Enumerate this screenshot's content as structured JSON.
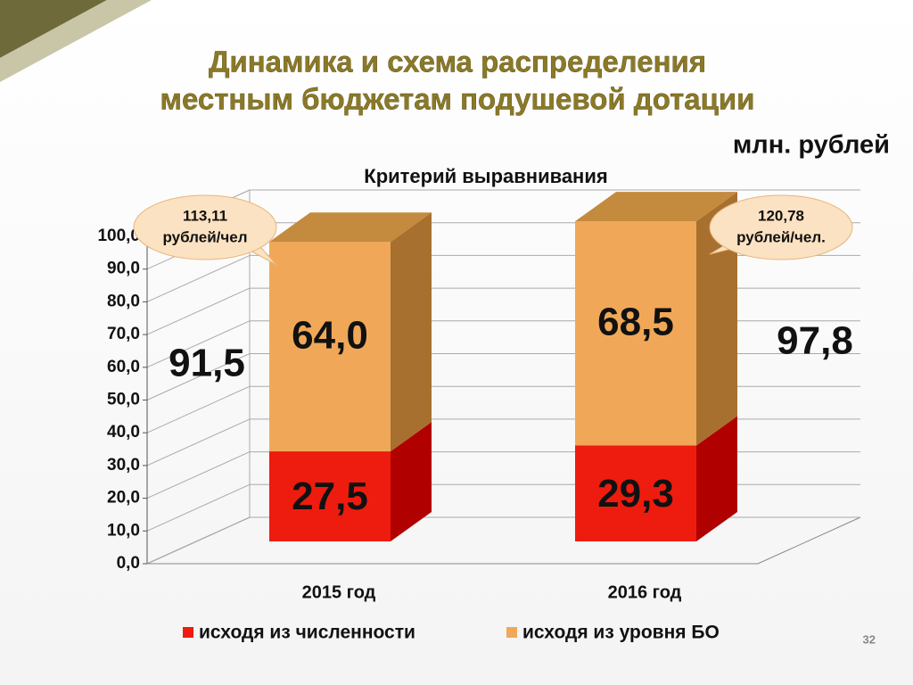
{
  "chart_data": {
    "type": "stacked-bar-3d",
    "title": [
      "Динамика и схема распределения",
      "местным бюджетам  подушевой дотации"
    ],
    "unit": "млн. рублей",
    "subtitle": "Критерий выравнивания",
    "categories": [
      "2015 год",
      "2016 год"
    ],
    "series": [
      {
        "name": "исходя из численности",
        "color": "#ee1c0e",
        "side_color": "#b00000",
        "values": [
          27.5,
          29.3
        ],
        "value_labels": [
          "27,5",
          "29,3"
        ]
      },
      {
        "name": "исходя из уровня БО",
        "color": "#f0a858",
        "side_color": "#a8702e",
        "top_color": "#c48a3e",
        "values": [
          64.0,
          68.5
        ],
        "value_labels": [
          "64,0",
          "68,5"
        ]
      }
    ],
    "totals": {
      "values": [
        91.5,
        97.8
      ],
      "value_labels": [
        "91,5",
        "97,8"
      ]
    },
    "callouts": [
      [
        "113,11",
        "рублей/чел"
      ],
      [
        "120,78",
        "рублей/чел."
      ]
    ],
    "ylim": [
      0,
      100
    ],
    "yticks": [
      {
        "value": 0,
        "label": "0,0"
      },
      {
        "value": 10,
        "label": "10,0"
      },
      {
        "value": 20,
        "label": "20,0"
      },
      {
        "value": 30,
        "label": "30,0"
      },
      {
        "value": 40,
        "label": "40,0"
      },
      {
        "value": 50,
        "label": "50,0"
      },
      {
        "value": 60,
        "label": "60,0"
      },
      {
        "value": 70,
        "label": "70,0"
      },
      {
        "value": 80,
        "label": "80,0"
      },
      {
        "value": 90,
        "label": "90,0"
      },
      {
        "value": 100,
        "label": "100,0"
      }
    ],
    "grid": true,
    "page_number": "32"
  }
}
